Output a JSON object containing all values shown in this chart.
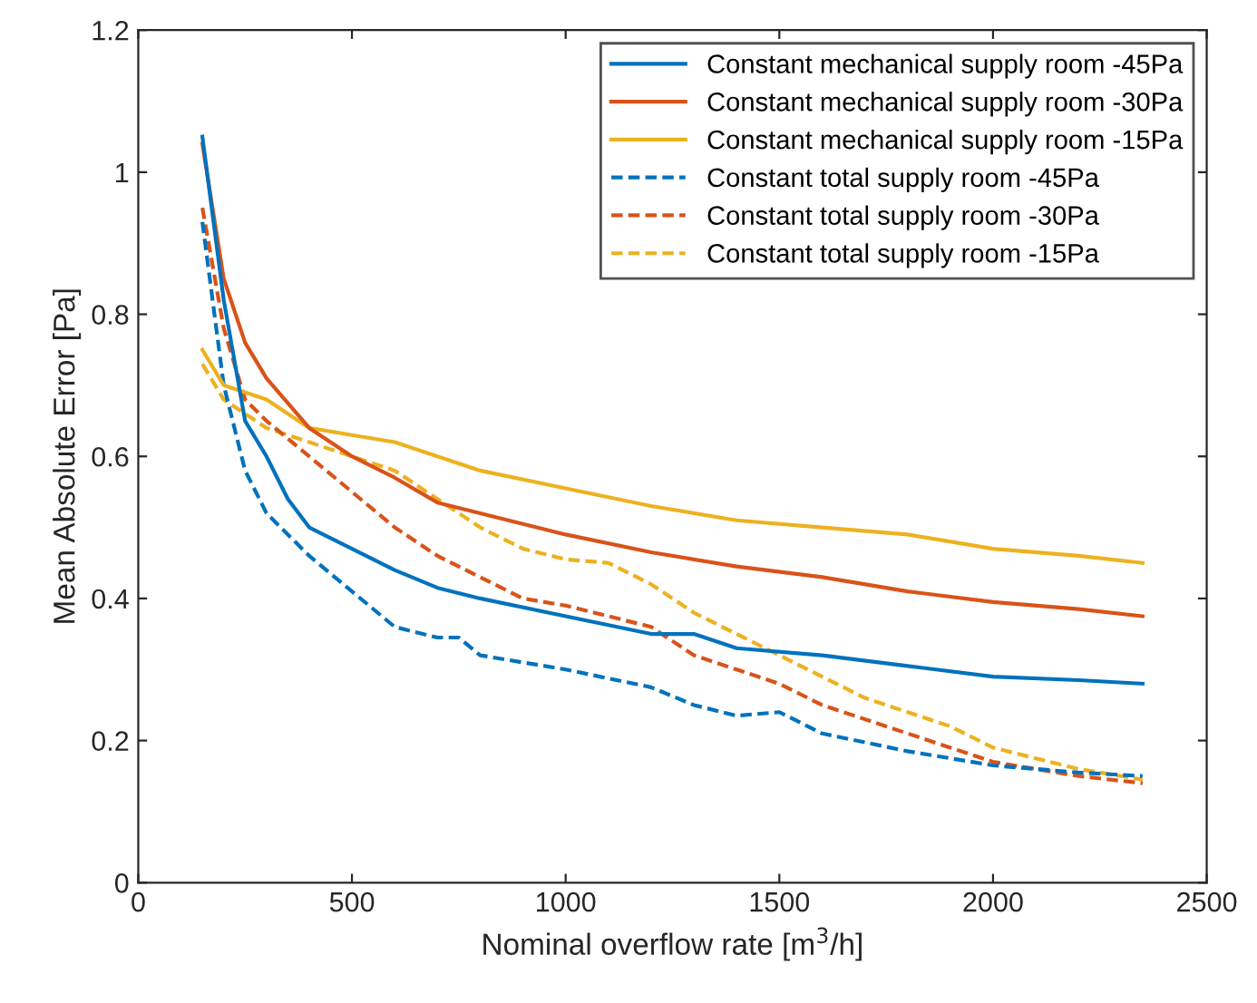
{
  "chart_data": {
    "type": "line",
    "xlabel": "Nominal overflow rate [m$^{3}$/h]",
    "ylabel": "Mean Absolute Error [Pa]",
    "xlim": [
      0,
      2500
    ],
    "xticks": [
      0,
      500,
      1000,
      1500,
      2000,
      2500
    ],
    "ylim": [
      0,
      1.2
    ],
    "yticks": [
      0,
      0.2,
      0.4,
      0.6,
      0.8,
      1,
      1.2
    ],
    "grid": false,
    "legend": "top right",
    "marker": "none",
    "series": [
      {
        "name": "Constant mechanical supply room -45Pa",
        "color": "#0072bd",
        "line_style": "solid",
        "x": [
          150,
          200,
          250,
          300,
          350,
          400,
          500,
          600,
          700,
          800,
          1000,
          1200,
          1300,
          1400,
          1600,
          1800,
          2000,
          2200,
          2350
        ],
        "values": [
          1.05,
          0.82,
          0.65,
          0.6,
          0.54,
          0.5,
          0.47,
          0.44,
          0.415,
          0.4,
          0.375,
          0.35,
          0.35,
          0.33,
          0.32,
          0.305,
          0.29,
          0.285,
          0.28
        ]
      },
      {
        "name": "Constant mechanical supply room -30Pa",
        "color": "#d95319",
        "line_style": "solid",
        "x": [
          150,
          200,
          250,
          300,
          400,
          500,
          600,
          700,
          800,
          1000,
          1200,
          1400,
          1600,
          1800,
          2000,
          2200,
          2350
        ],
        "values": [
          1.04,
          0.85,
          0.76,
          0.71,
          0.64,
          0.6,
          0.57,
          0.535,
          0.52,
          0.49,
          0.465,
          0.445,
          0.43,
          0.41,
          0.395,
          0.385,
          0.375
        ]
      },
      {
        "name": "Constant mechanical supply room -15Pa",
        "color": "#edb120",
        "line_style": "solid",
        "x": [
          150,
          200,
          300,
          400,
          500,
          600,
          700,
          800,
          1000,
          1200,
          1400,
          1600,
          1800,
          2000,
          2200,
          2350
        ],
        "values": [
          0.75,
          0.7,
          0.68,
          0.64,
          0.63,
          0.62,
          0.6,
          0.58,
          0.555,
          0.53,
          0.51,
          0.5,
          0.49,
          0.47,
          0.46,
          0.45
        ]
      },
      {
        "name": "Constant total supply room -45Pa",
        "color": "#0072bd",
        "line_style": "dashed",
        "x": [
          150,
          200,
          250,
          300,
          400,
          500,
          600,
          700,
          750,
          800,
          1000,
          1200,
          1300,
          1400,
          1500,
          1600,
          1800,
          2000,
          2200,
          2350
        ],
        "values": [
          0.93,
          0.7,
          0.58,
          0.52,
          0.46,
          0.41,
          0.36,
          0.345,
          0.345,
          0.32,
          0.3,
          0.275,
          0.25,
          0.235,
          0.24,
          0.21,
          0.185,
          0.165,
          0.155,
          0.15
        ]
      },
      {
        "name": "Constant total supply room -30Pa",
        "color": "#d95319",
        "line_style": "dashed",
        "x": [
          150,
          200,
          250,
          300,
          400,
          500,
          600,
          700,
          800,
          900,
          1000,
          1200,
          1300,
          1400,
          1500,
          1600,
          1800,
          1900,
          2000,
          2200,
          2350
        ],
        "values": [
          0.95,
          0.78,
          0.68,
          0.65,
          0.6,
          0.55,
          0.5,
          0.46,
          0.43,
          0.4,
          0.39,
          0.36,
          0.32,
          0.3,
          0.28,
          0.25,
          0.21,
          0.19,
          0.17,
          0.15,
          0.14
        ]
      },
      {
        "name": "Constant total supply room -15Pa",
        "color": "#edb120",
        "line_style": "dashed",
        "x": [
          150,
          200,
          300,
          400,
          500,
          600,
          700,
          800,
          900,
          1000,
          1100,
          1200,
          1300,
          1400,
          1500,
          1600,
          1700,
          1800,
          1900,
          2000,
          2200,
          2350
        ],
        "values": [
          0.73,
          0.68,
          0.64,
          0.62,
          0.6,
          0.58,
          0.54,
          0.5,
          0.47,
          0.455,
          0.45,
          0.42,
          0.38,
          0.35,
          0.32,
          0.29,
          0.26,
          0.24,
          0.22,
          0.19,
          0.16,
          0.145
        ]
      }
    ]
  }
}
